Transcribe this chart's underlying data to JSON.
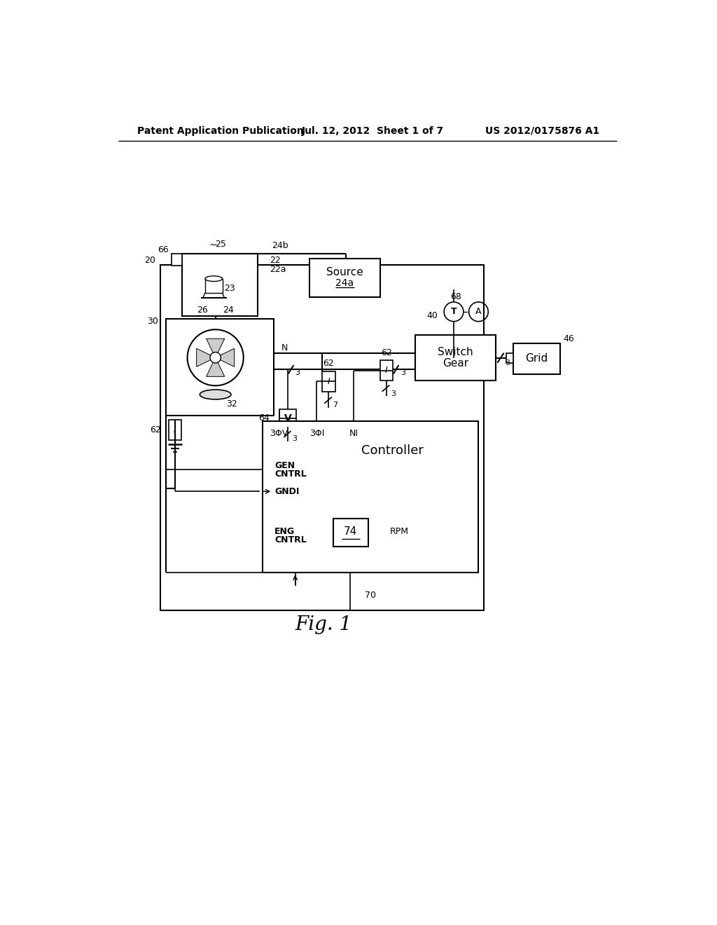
{
  "bg_color": "#ffffff",
  "line_color": "#000000",
  "header_left": "Patent Application Publication",
  "header_center": "Jul. 12, 2012  Sheet 1 of 7",
  "header_right": "US 2012/0175876 A1",
  "fig_label": "Fig. 1"
}
